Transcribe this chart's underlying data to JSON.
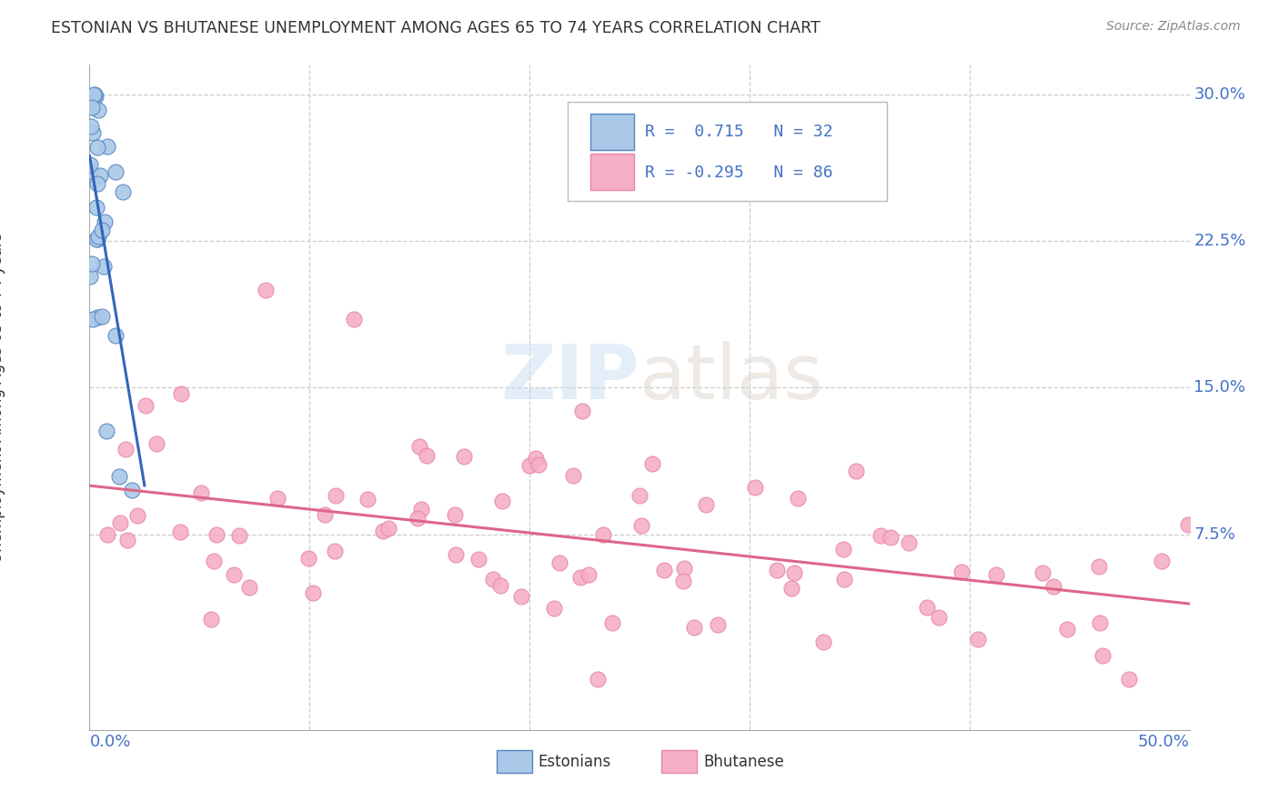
{
  "title": "ESTONIAN VS BHUTANESE UNEMPLOYMENT AMONG AGES 65 TO 74 YEARS CORRELATION CHART",
  "source": "Source: ZipAtlas.com",
  "ylabel": "Unemployment Among Ages 65 to 74 years",
  "ytick_vals": [
    0.075,
    0.15,
    0.225,
    0.3
  ],
  "ytick_labels": [
    "7.5%",
    "15.0%",
    "22.5%",
    "30.0%"
  ],
  "xlim": [
    0.0,
    0.5
  ],
  "ylim": [
    -0.025,
    0.315
  ],
  "legend_r1": "R =  0.715",
  "legend_n1": "N = 32",
  "legend_r2": "R = -0.295",
  "legend_n2": "N = 86",
  "watermark_zip": "ZIP",
  "watermark_atlas": "atlas",
  "estonian_color": "#aac8e8",
  "bhutanese_color": "#f5afc5",
  "estonian_edge_color": "#5585c0",
  "bhutanese_edge_color": "#e888a8",
  "estonian_line_color": "#3366bb",
  "bhutanese_line_color": "#dd6688",
  "axis_color": "#4472c4",
  "title_color": "#333333",
  "grid_color": "#cccccc",
  "source_color": "#888888"
}
